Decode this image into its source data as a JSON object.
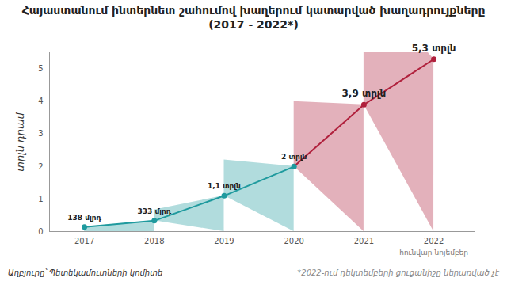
{
  "chart_data": {
    "type": "line",
    "title": "Հայաստանում ինտերնետ շահումով խաղերում կատարված խաղադրույքները\n(2017 - 2022*)",
    "y_label": "տրլն դրամ",
    "x": [
      2017,
      2018,
      2019,
      2020,
      2021,
      2022
    ],
    "values": [
      0.138,
      0.333,
      1.1,
      2,
      3.9,
      5.3
    ],
    "value_labels": [
      "138 մլրդ",
      "333 մլրդ",
      "1,1 տրլն",
      "2 տրլն",
      "3,9 տրլն",
      "5,3 տրլն"
    ],
    "colors": [
      "#1f9a9e",
      "#1f9a9e",
      "#1f9a9e",
      "#1f9a9e",
      "#b0203c",
      "#b0203c"
    ],
    "data_labels": true,
    "xlim": [
      2016.5,
      2022.6
    ],
    "xticks": [
      2017,
      2018,
      2019,
      2020,
      2021,
      2022
    ],
    "ylim": [
      0,
      5.5
    ],
    "yticks": [
      0,
      1,
      2,
      3,
      4,
      5
    ],
    "grid": false,
    "annotations": [
      {
        "x": 2022,
        "text": "հունվար-նոյեմբեր"
      }
    ],
    "source": "Աղբյուրը՝ Պետեկամուտների կոմիտե",
    "footnote": "*2022-ում դեկտեմբերի ցուցանիշը ներառված չէ"
  }
}
